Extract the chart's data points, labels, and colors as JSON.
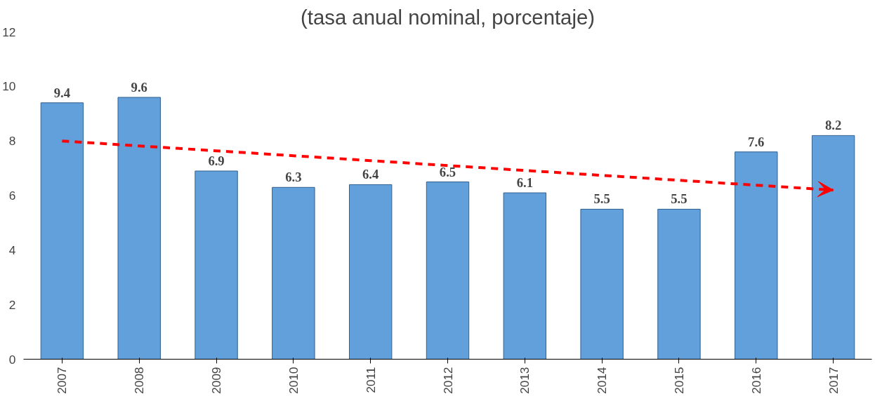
{
  "chart_data": {
    "type": "bar",
    "title": "(tasa anual nominal, porcentaje)",
    "categories": [
      "2007",
      "2008",
      "2009",
      "2010",
      "2011",
      "2012",
      "2013",
      "2014",
      "2015",
      "2016",
      "2017"
    ],
    "series": [
      {
        "color": "#62a0dc",
        "values": [
          9.4,
          9.6,
          6.9,
          6.3,
          6.4,
          6.5,
          6.1,
          5.5,
          5.5,
          7.6,
          8.2
        ],
        "value_labels": [
          "9.4",
          "9.6",
          "6.9",
          "6.3",
          "6.4",
          "6.5",
          "6.1",
          "5.5",
          "5.5",
          "7.6",
          "8.2"
        ]
      },
      {
        "type": "line",
        "color": "#ff0000",
        "line_style": "dashed",
        "values": [
          8.0,
          7.82,
          7.64,
          7.46,
          7.28,
          7.1,
          6.92,
          6.74,
          6.56,
          6.38,
          6.2
        ]
      }
    ],
    "ylim": [
      0,
      12
    ],
    "yticks": [
      0,
      2,
      4,
      6,
      8,
      10,
      12
    ],
    "grid": false
  }
}
